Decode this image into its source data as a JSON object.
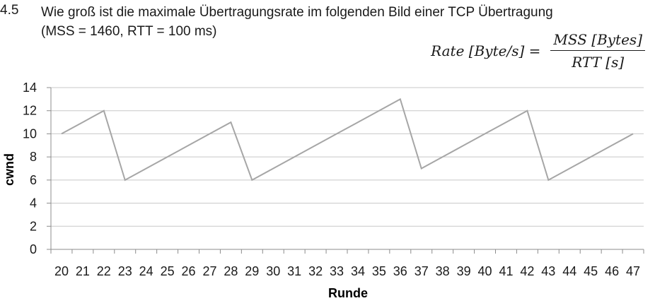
{
  "question": {
    "number": "4.5",
    "line1": "Wie groß ist die maximale Übertragungsrate im folgenden Bild einer TCP Übertragung",
    "line2": "(MSS = 1460, RTT = 100 ms)"
  },
  "formula": {
    "lhs": "Rate [Byte/s] =",
    "numerator": "MSS [Bytes]",
    "denominator": "RTT [s]"
  },
  "chart_data": {
    "type": "line",
    "title": "",
    "xlabel": "Runde",
    "ylabel": "cwnd",
    "categories": [
      "20",
      "21",
      "22",
      "23",
      "24",
      "25",
      "26",
      "27",
      "28",
      "29",
      "30",
      "31",
      "32",
      "33",
      "34",
      "35",
      "36",
      "37",
      "38",
      "39",
      "40",
      "41",
      "42",
      "43",
      "44",
      "45",
      "46",
      "47"
    ],
    "series": [
      {
        "values": [
          10,
          11,
          12,
          6,
          7,
          8,
          9,
          10,
          11,
          6,
          7,
          8,
          9,
          10,
          11,
          12,
          13,
          7,
          8,
          9,
          10,
          11,
          12,
          6,
          7,
          8,
          9,
          10
        ],
        "color": "#a6a6a6"
      }
    ],
    "ylim": [
      0,
      14
    ],
    "yticks": [
      0,
      2,
      4,
      6,
      8,
      10,
      12,
      14
    ],
    "grid": true,
    "legend": "none",
    "gridColor": "#c8c8c8"
  }
}
